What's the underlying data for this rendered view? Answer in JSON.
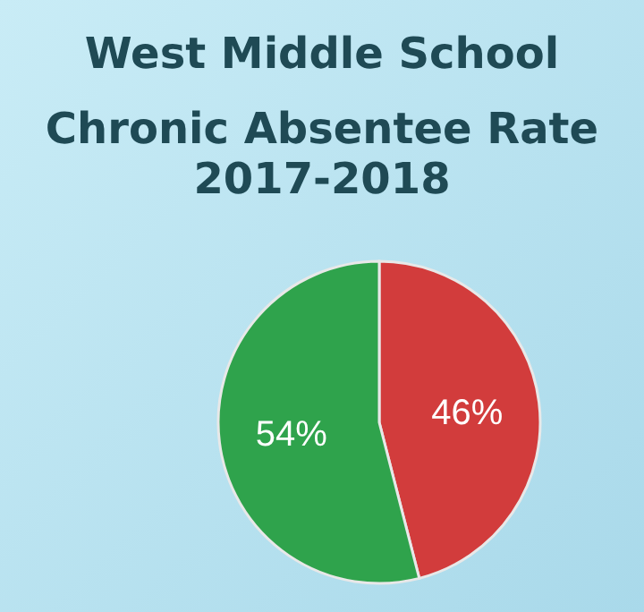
{
  "chart_data": {
    "type": "pie",
    "title": "West Middle School",
    "subtitle": "Chronic Absentee Rate 2017-2018",
    "categories": [
      null,
      null
    ],
    "values": [
      46,
      54
    ],
    "colors": [
      "#d23c3c",
      "#2fa34c"
    ],
    "value_labels": [
      "46%",
      "54%"
    ]
  }
}
